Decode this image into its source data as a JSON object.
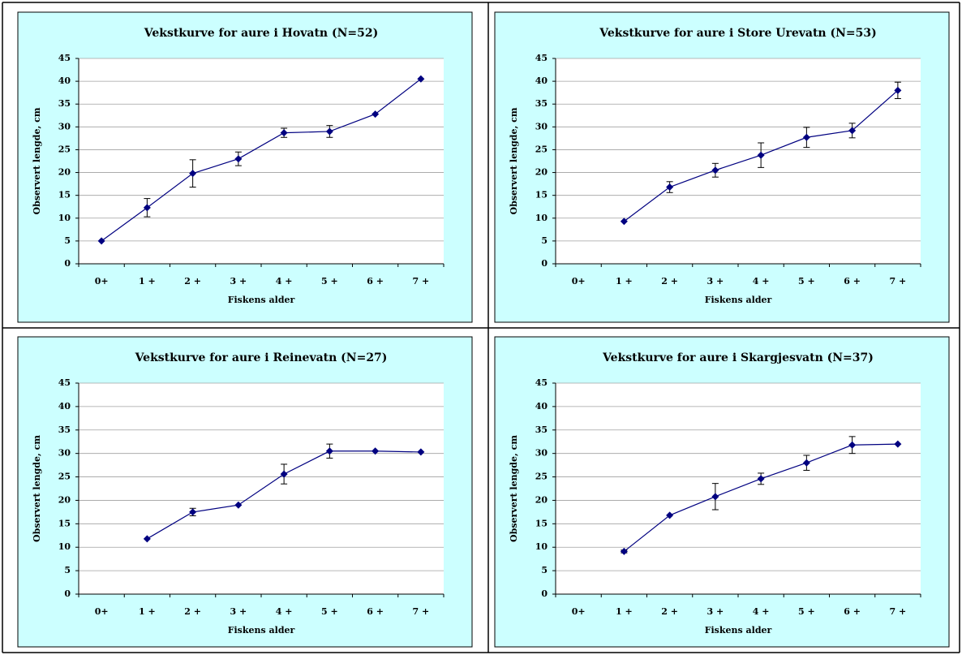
{
  "chart_data": [
    {
      "type": "line",
      "title": "Vekstkurve for aure i Hovatn (N=52)",
      "x_label": "Fiskens alder",
      "y_label": "Observert lengde, cm",
      "categories": [
        "0+",
        "1 +",
        "2 +",
        "3 +",
        "4 +",
        "5 +",
        "6 +",
        "7 +"
      ],
      "series": [
        {
          "color": "#000080",
          "values": [
            5,
            12.3,
            19.8,
            23,
            28.7,
            29,
            32.8,
            40.5
          ],
          "errors": [
            null,
            2,
            3,
            1.5,
            1,
            1.3,
            null,
            null
          ]
        }
      ],
      "ylim": [
        0,
        45
      ],
      "yticks": [
        0,
        5,
        10,
        15,
        20,
        25,
        30,
        35,
        40,
        45
      ],
      "grid": true,
      "background": "#ccffff"
    },
    {
      "type": "line",
      "title": "Vekstkurve for aure i Store Urevatn (N=53)",
      "x_label": "Fiskens alder",
      "y_label": "Observert lengde, cm",
      "categories": [
        "0+",
        "1 +",
        "2 +",
        "3 +",
        "4 +",
        "5 +",
        "6 +",
        "7 +"
      ],
      "series": [
        {
          "color": "#000080",
          "values": [
            null,
            9.3,
            16.8,
            20.5,
            23.8,
            27.7,
            29.2,
            38
          ],
          "errors": [
            null,
            null,
            1.2,
            1.5,
            2.7,
            2.2,
            1.6,
            1.8
          ]
        }
      ],
      "ylim": [
        0,
        45
      ],
      "yticks": [
        0,
        5,
        10,
        15,
        20,
        25,
        30,
        35,
        40,
        45
      ],
      "grid": true,
      "background": "#ccffff"
    },
    {
      "type": "line",
      "title": "Vekstkurve for aure i Reinevatn (N=27)",
      "x_label": "Fiskens alder",
      "y_label": "Observert lengde, cm",
      "categories": [
        "0+",
        "1 +",
        "2 +",
        "3 +",
        "4 +",
        "5 +",
        "6 +",
        "7 +"
      ],
      "series": [
        {
          "color": "#000080",
          "values": [
            null,
            11.8,
            17.5,
            19,
            25.6,
            30.5,
            30.5,
            30.3
          ],
          "errors": [
            null,
            null,
            0.8,
            null,
            2.1,
            1.5,
            null,
            null
          ]
        }
      ],
      "ylim": [
        0,
        45
      ],
      "yticks": [
        0,
        5,
        10,
        15,
        20,
        25,
        30,
        35,
        40,
        45
      ],
      "grid": true,
      "background": "#ccffff"
    },
    {
      "type": "line",
      "title": "Vekstkurve for aure i Skargjesvatn (N=37)",
      "x_label": "Fiskens alder",
      "y_label": "Observert lengde, cm",
      "categories": [
        "0+",
        "1 +",
        "2 +",
        "3 +",
        "4 +",
        "5 +",
        "6 +",
        "7 +"
      ],
      "series": [
        {
          "color": "#000080",
          "values": [
            null,
            9.1,
            16.8,
            20.8,
            24.6,
            28,
            31.8,
            32
          ],
          "errors": [
            null,
            0.3,
            null,
            2.8,
            1.2,
            1.6,
            1.8,
            null
          ]
        }
      ],
      "ylim": [
        0,
        45
      ],
      "yticks": [
        0,
        5,
        10,
        15,
        20,
        25,
        30,
        35,
        40,
        45
      ],
      "grid": true,
      "background": "#ccffff"
    }
  ]
}
